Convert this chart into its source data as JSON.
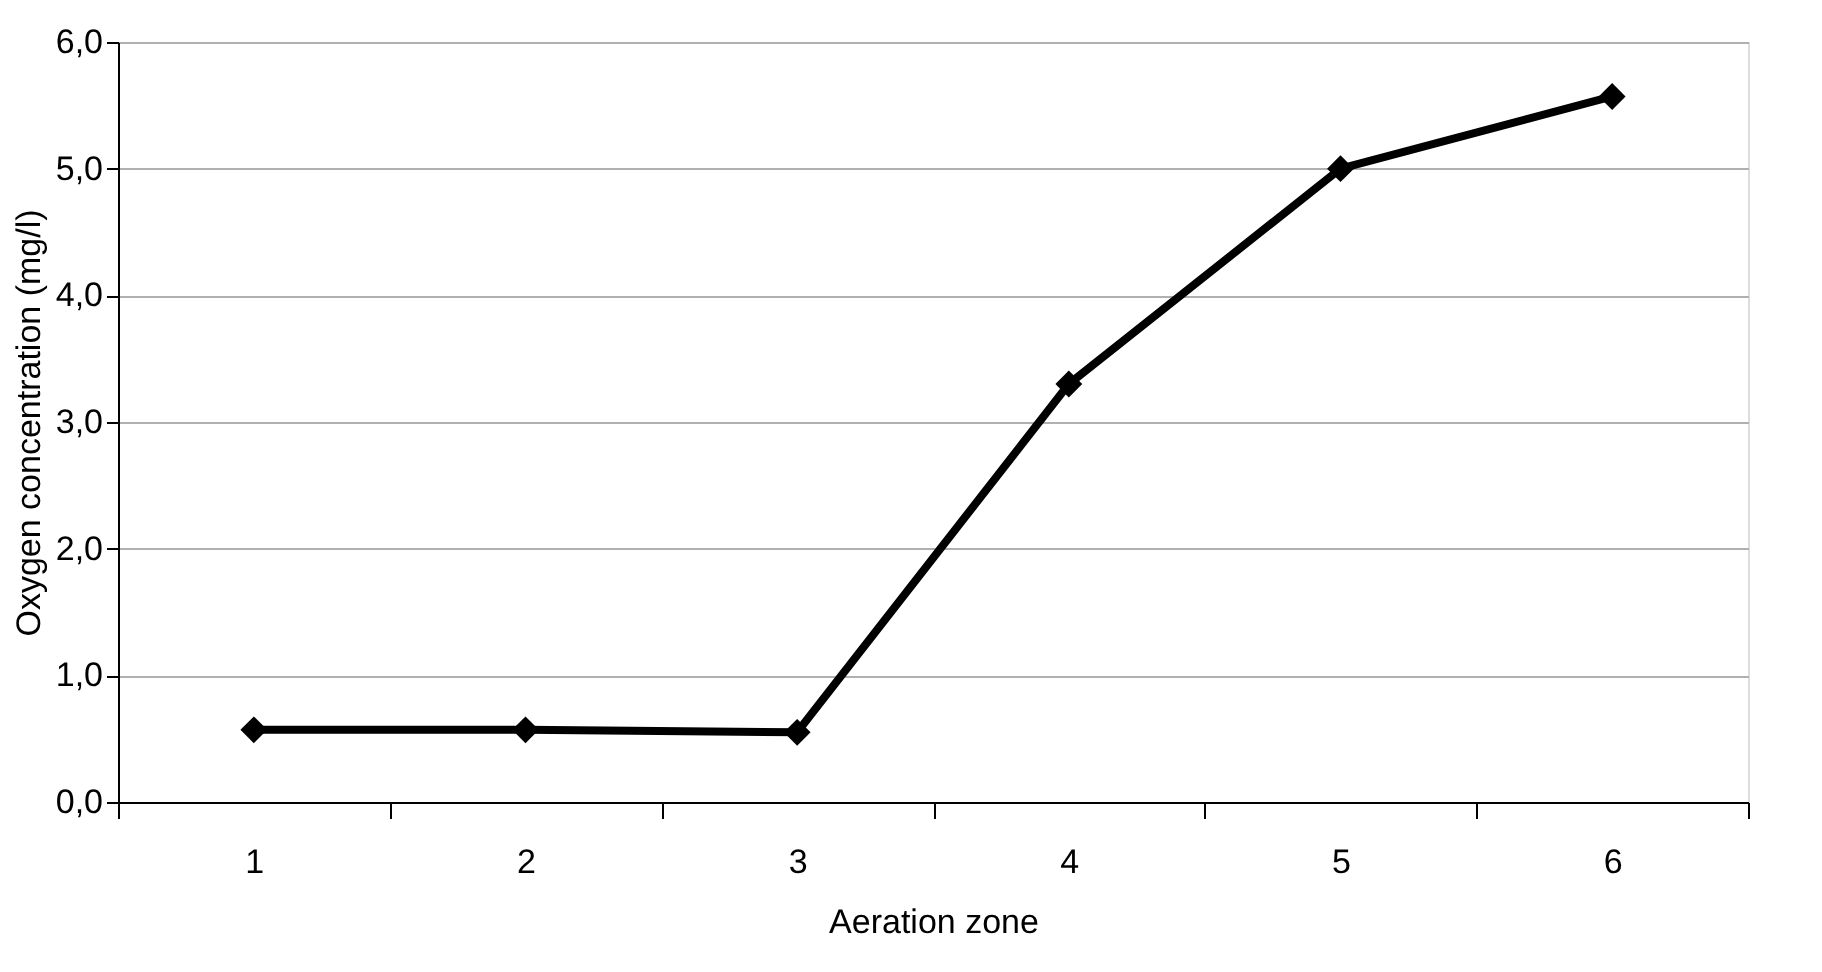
{
  "chart_data": {
    "type": "line",
    "xlabel": "Aeration zone",
    "ylabel": "Oxygen concentration (mg/l)",
    "categories": [
      "1",
      "2",
      "3",
      "4",
      "5",
      "6"
    ],
    "series": [
      {
        "color": "#000000",
        "values": [
          0.57,
          0.57,
          0.55,
          3.3,
          5.0,
          5.57
        ]
      }
    ],
    "ylim": [
      0,
      6
    ],
    "yticks": [
      {
        "value": 0,
        "label": "0,0"
      },
      {
        "value": 1,
        "label": "1,0"
      },
      {
        "value": 2,
        "label": "2,0"
      },
      {
        "value": 3,
        "label": "3,0"
      },
      {
        "value": 4,
        "label": "4,0"
      },
      {
        "value": 5,
        "label": "5,0"
      },
      {
        "value": 6,
        "label": "6,0"
      }
    ],
    "grid": "y",
    "marker": "diamond",
    "line_style": "solid"
  }
}
